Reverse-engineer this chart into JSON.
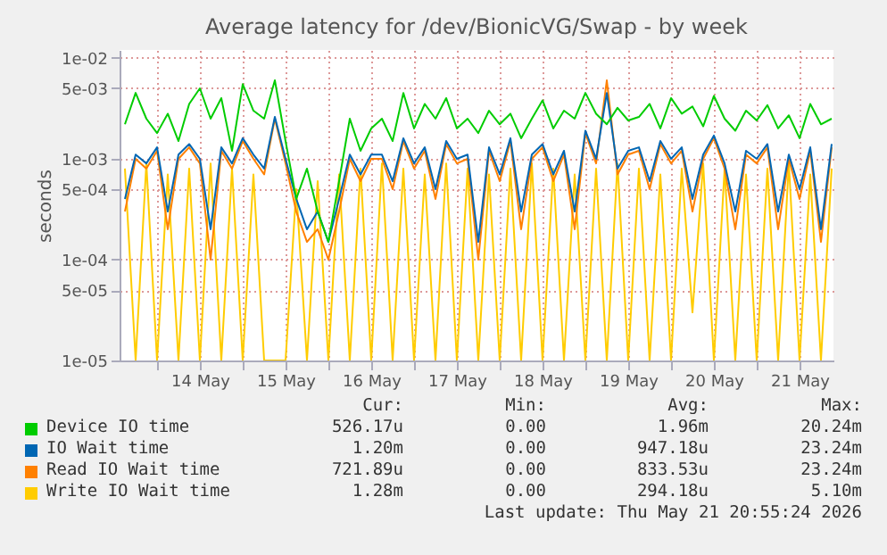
{
  "chart_data": {
    "type": "line",
    "title": "Average latency for /dev/BionicVG/Swap - by week",
    "ylabel": "seconds",
    "log": "y",
    "grid": true,
    "legend": "bottom",
    "x": [
      "2026-05-13T15:00",
      "2026-05-13T18:00",
      "2026-05-13T21:00",
      "2026-05-14T00:00",
      "2026-05-14T03:00",
      "2026-05-14T06:00",
      "2026-05-14T09:00",
      "2026-05-14T12:00",
      "2026-05-14T15:00",
      "2026-05-14T18:00",
      "2026-05-14T21:00",
      "2026-05-15T00:00",
      "2026-05-15T03:00",
      "2026-05-15T06:00",
      "2026-05-15T09:00",
      "2026-05-15T12:00",
      "2026-05-15T15:00",
      "2026-05-15T18:00",
      "2026-05-15T21:00",
      "2026-05-16T00:00",
      "2026-05-16T03:00",
      "2026-05-16T06:00",
      "2026-05-16T09:00",
      "2026-05-16T12:00",
      "2026-05-16T15:00",
      "2026-05-16T18:00",
      "2026-05-16T21:00",
      "2026-05-17T00:00",
      "2026-05-17T03:00",
      "2026-05-17T06:00",
      "2026-05-17T09:00",
      "2026-05-17T12:00",
      "2026-05-17T15:00",
      "2026-05-17T18:00",
      "2026-05-17T21:00",
      "2026-05-18T00:00",
      "2026-05-18T03:00",
      "2026-05-18T06:00",
      "2026-05-18T09:00",
      "2026-05-18T12:00",
      "2026-05-18T15:00",
      "2026-05-18T18:00",
      "2026-05-18T21:00",
      "2026-05-19T00:00",
      "2026-05-19T03:00",
      "2026-05-19T06:00",
      "2026-05-19T09:00",
      "2026-05-19T12:00",
      "2026-05-19T15:00",
      "2026-05-19T18:00",
      "2026-05-19T21:00",
      "2026-05-20T00:00",
      "2026-05-20T03:00",
      "2026-05-20T06:00",
      "2026-05-20T09:00",
      "2026-05-20T12:00",
      "2026-05-20T15:00",
      "2026-05-20T18:00",
      "2026-05-20T21:00",
      "2026-05-21T00:00",
      "2026-05-21T03:00",
      "2026-05-21T06:00",
      "2026-05-21T09:00",
      "2026-05-21T12:00",
      "2026-05-21T15:00",
      "2026-05-21T18:00",
      "2026-05-21T21:00"
    ],
    "xlim": [
      "2026-05-13T13:30",
      "2026-05-21T21:30"
    ],
    "xticks": [
      {
        "value": "2026-05-14T00:00",
        "label": null
      },
      {
        "value": "2026-05-14T12:00",
        "label": "14 May"
      },
      {
        "value": "2026-05-15T00:00",
        "label": null
      },
      {
        "value": "2026-05-15T12:00",
        "label": "15 May"
      },
      {
        "value": "2026-05-16T00:00",
        "label": null
      },
      {
        "value": "2026-05-16T12:00",
        "label": "16 May"
      },
      {
        "value": "2026-05-17T00:00",
        "label": null
      },
      {
        "value": "2026-05-17T12:00",
        "label": "17 May"
      },
      {
        "value": "2026-05-18T00:00",
        "label": null
      },
      {
        "value": "2026-05-18T12:00",
        "label": "18 May"
      },
      {
        "value": "2026-05-19T00:00",
        "label": null
      },
      {
        "value": "2026-05-19T12:00",
        "label": "19 May"
      },
      {
        "value": "2026-05-20T00:00",
        "label": null
      },
      {
        "value": "2026-05-20T12:00",
        "label": "20 May"
      },
      {
        "value": "2026-05-21T00:00",
        "label": null
      },
      {
        "value": "2026-05-21T12:00",
        "label": "21 May"
      }
    ],
    "ylim": [
      1e-05,
      0.012
    ],
    "yticks": [
      {
        "value": 0.01,
        "label": "1e-02"
      },
      {
        "value": 0.005,
        "label": "5e-03"
      },
      {
        "value": 0.001,
        "label": "1e-03"
      },
      {
        "value": 0.0005,
        "label": "5e-04"
      },
      {
        "value": 0.0001,
        "label": "1e-04"
      },
      {
        "value": 5e-05,
        "label": "5e-05"
      },
      {
        "value": 1e-05,
        "label": "1e-05"
      }
    ],
    "series": [
      {
        "name": "Device IO time",
        "color": "#00cc00",
        "values": [
          0.0022,
          0.0045,
          0.0025,
          0.0018,
          0.0028,
          0.0015,
          0.0035,
          0.005,
          0.0025,
          0.004,
          0.0012,
          0.0055,
          0.003,
          0.0025,
          0.006,
          0.0015,
          0.0004,
          0.0008,
          0.0003,
          0.00015,
          0.0006,
          0.0025,
          0.0012,
          0.002,
          0.0025,
          0.0015,
          0.0045,
          0.002,
          0.0035,
          0.0025,
          0.004,
          0.002,
          0.0025,
          0.0018,
          0.003,
          0.0022,
          0.0028,
          0.0016,
          0.0025,
          0.0038,
          0.002,
          0.003,
          0.0025,
          0.0045,
          0.0028,
          0.0022,
          0.0032,
          0.0024,
          0.0026,
          0.0035,
          0.002,
          0.004,
          0.0028,
          0.0033,
          0.0021,
          0.0042,
          0.0025,
          0.0019,
          0.003,
          0.0024,
          0.0034,
          0.002,
          0.0027,
          0.0016,
          0.0035,
          0.0022,
          0.0025
        ]
      },
      {
        "name": "IO Wait time",
        "color": "#0066b3",
        "values": [
          0.0004,
          0.0011,
          0.0009,
          0.0013,
          0.0003,
          0.0011,
          0.0014,
          0.001,
          0.0002,
          0.0013,
          0.0009,
          0.0016,
          0.0011,
          0.0008,
          0.0026,
          0.001,
          0.0004,
          0.0002,
          0.0003,
          0.00015,
          0.0004,
          0.0011,
          0.0007,
          0.0011,
          0.0011,
          0.0006,
          0.0016,
          0.0009,
          0.0013,
          0.0005,
          0.0015,
          0.001,
          0.0011,
          0.00015,
          0.0013,
          0.0007,
          0.0016,
          0.0003,
          0.0011,
          0.0014,
          0.0007,
          0.0012,
          0.0003,
          0.0019,
          0.001,
          0.0045,
          0.0008,
          0.0012,
          0.0013,
          0.0006,
          0.0015,
          0.001,
          0.0013,
          0.0004,
          0.0011,
          0.0017,
          0.0009,
          0.0003,
          0.0012,
          0.001,
          0.0014,
          0.0003,
          0.0011,
          0.0005,
          0.0013,
          0.0002,
          0.0014
        ]
      },
      {
        "name": "Read IO Wait time",
        "color": "#ff8000",
        "values": [
          0.0003,
          0.001,
          0.0008,
          0.0012,
          0.0002,
          0.001,
          0.0013,
          0.0009,
          0.0001,
          0.0012,
          0.0008,
          0.0015,
          0.001,
          0.0007,
          0.0025,
          0.0009,
          0.0003,
          0.00015,
          0.0002,
          0.0001,
          0.0003,
          0.001,
          0.0006,
          0.001,
          0.001,
          0.0005,
          0.0015,
          0.0008,
          0.0012,
          0.0004,
          0.0014,
          0.0009,
          0.001,
          0.0001,
          0.0012,
          0.0006,
          0.0015,
          0.0002,
          0.001,
          0.0013,
          0.0006,
          0.0011,
          0.0002,
          0.0018,
          0.0009,
          0.006,
          0.0007,
          0.0011,
          0.0012,
          0.0005,
          0.0014,
          0.0009,
          0.0012,
          0.0003,
          0.001,
          0.0016,
          0.0008,
          0.0002,
          0.0011,
          0.0009,
          0.0013,
          0.0002,
          0.001,
          0.0004,
          0.0012,
          0.00015,
          0.0013
        ]
      },
      {
        "name": "Write IO Wait time",
        "color": "#ffcc00",
        "values": [
          0.0008,
          1e-05,
          0.0009,
          1e-05,
          0.0007,
          1e-05,
          0.0008,
          1e-05,
          0.0009,
          1e-05,
          0.0008,
          1e-05,
          0.0007,
          1e-05,
          1e-05,
          1e-05,
          0.0005,
          1e-05,
          0.0006,
          1e-05,
          0.0007,
          1e-05,
          0.0008,
          1e-05,
          0.0009,
          1e-05,
          0.0008,
          1e-05,
          0.0007,
          1e-05,
          0.0009,
          1e-05,
          0.0008,
          1e-05,
          0.0007,
          1e-05,
          0.0008,
          1e-05,
          0.0009,
          1e-05,
          0.0008,
          1e-05,
          0.0007,
          1e-05,
          0.0008,
          1e-05,
          0.0009,
          1e-05,
          0.0008,
          1e-05,
          0.0007,
          1e-05,
          0.0008,
          3e-05,
          0.0009,
          1e-05,
          0.0008,
          1e-05,
          0.0007,
          1e-05,
          0.0008,
          1e-05,
          0.0009,
          1e-05,
          0.0007,
          1e-05,
          0.0008
        ]
      }
    ],
    "annotations": [
      "Cur:",
      "Min:",
      "Avg:",
      "Max:",
      "526.17u",
      "0.00",
      "1.96m",
      "20.24m",
      "1.20m",
      "0.00",
      "947.18u",
      "23.24m",
      "721.89u",
      "0.00",
      "833.53u",
      "23.24m",
      "1.28m",
      "0.00",
      "294.18u",
      "5.10m",
      "Last update: Thu May 21 20:55:24 2026"
    ]
  }
}
